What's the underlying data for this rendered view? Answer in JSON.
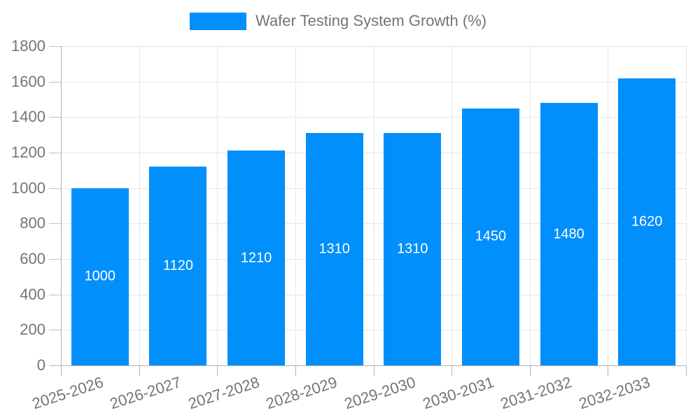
{
  "legend": {
    "label": "Wafer Testing System Growth (%)"
  },
  "chart_data": {
    "type": "bar",
    "title": "Wafer Testing System Growth (%)",
    "categories": [
      "2025-2026",
      "2026-2027",
      "2027-2028",
      "2028-2029",
      "2029-2030",
      "2030-2031",
      "2031-2032",
      "2032-2033"
    ],
    "values": [
      1000,
      1120,
      1210,
      1310,
      1310,
      1450,
      1480,
      1620
    ],
    "value_labels": [
      "1000",
      "1120",
      "1210",
      "1310",
      "1310",
      "1450",
      "1480",
      "1620"
    ],
    "xlabel": "",
    "ylabel": "",
    "ylim": [
      0,
      1800
    ],
    "ytick_step": 200,
    "ytick_labels": [
      "0",
      "200",
      "400",
      "600",
      "800",
      "1000",
      "1200",
      "1400",
      "1600",
      "1800"
    ],
    "grid": true,
    "legend_position": "top-center",
    "bar_color": "#008FFB",
    "value_label_color": "#ffffff",
    "axis_text_color": "#757575",
    "axis_line_color": "#b3b3b3",
    "gridline_color": "#e6e6e6"
  }
}
